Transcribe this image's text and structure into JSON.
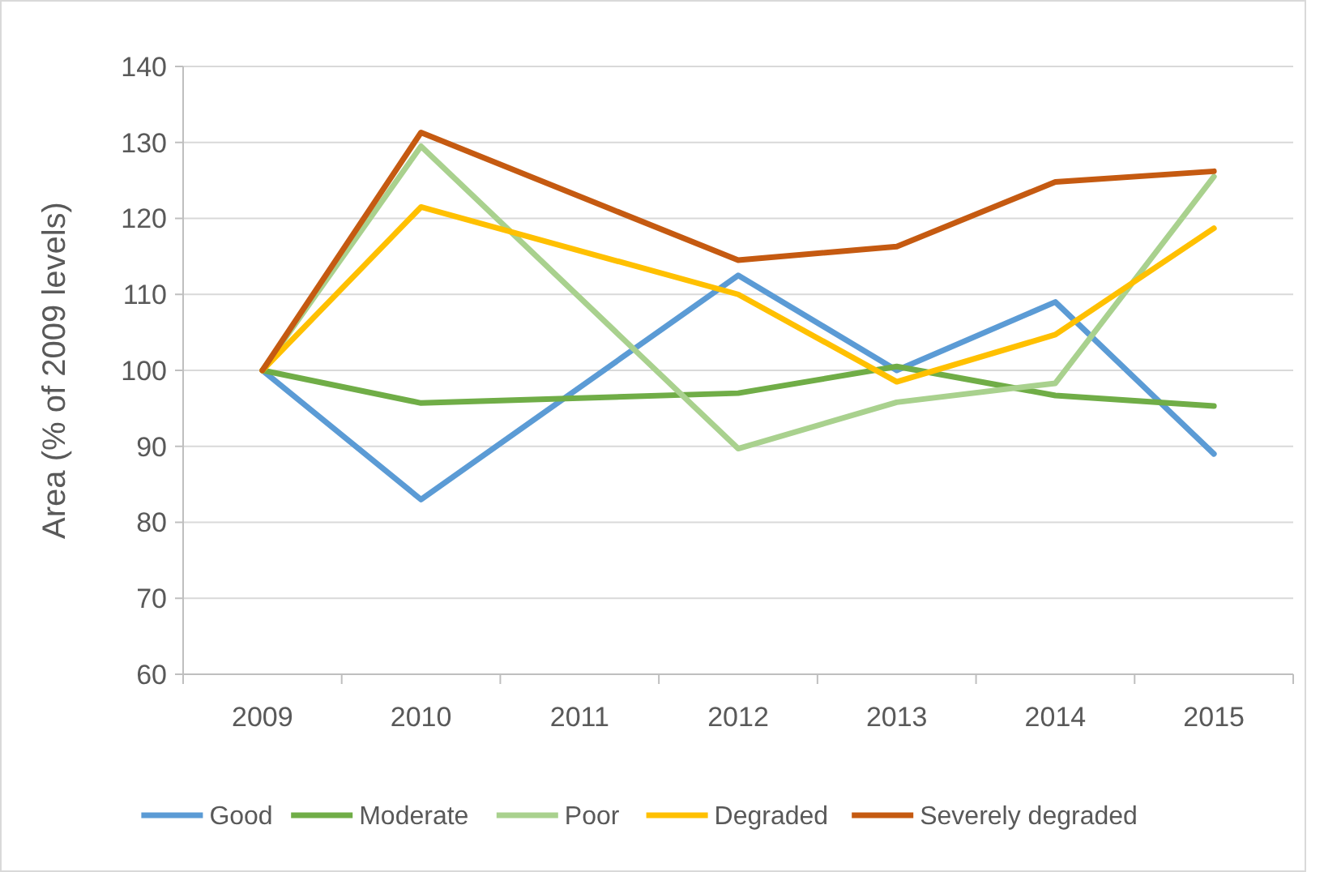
{
  "chart_data": {
    "type": "line",
    "ylabel": "Area (% of 2009 levels)",
    "categories": [
      "2009",
      "2010",
      "2011",
      "2012",
      "2013",
      "2014",
      "2015"
    ],
    "series": [
      {
        "name": "Good",
        "color": "#5b9bd5",
        "values": [
          100,
          83,
          null,
          112.5,
          100,
          109,
          89
        ]
      },
      {
        "name": "Moderate",
        "color": "#70ad47",
        "values": [
          100,
          95.7,
          null,
          97,
          100.5,
          96.7,
          95.3
        ]
      },
      {
        "name": "Poor",
        "color": "#a9d18e",
        "values": [
          100,
          129.5,
          null,
          89.7,
          95.8,
          98.3,
          125.5
        ]
      },
      {
        "name": "Degraded",
        "color": "#ffc000",
        "values": [
          100,
          121.5,
          null,
          110,
          98.5,
          104.7,
          118.7
        ]
      },
      {
        "name": "Severely degraded",
        "color": "#c55a11",
        "values": [
          100,
          131.3,
          null,
          114.5,
          116.3,
          124.8,
          126.2
        ]
      }
    ],
    "ylim": [
      60,
      140
    ],
    "yticks": [
      60,
      70,
      80,
      90,
      100,
      110,
      120,
      130,
      140
    ],
    "grid": "y",
    "legend": "bottom",
    "marker": "none",
    "line_style": "solid"
  }
}
